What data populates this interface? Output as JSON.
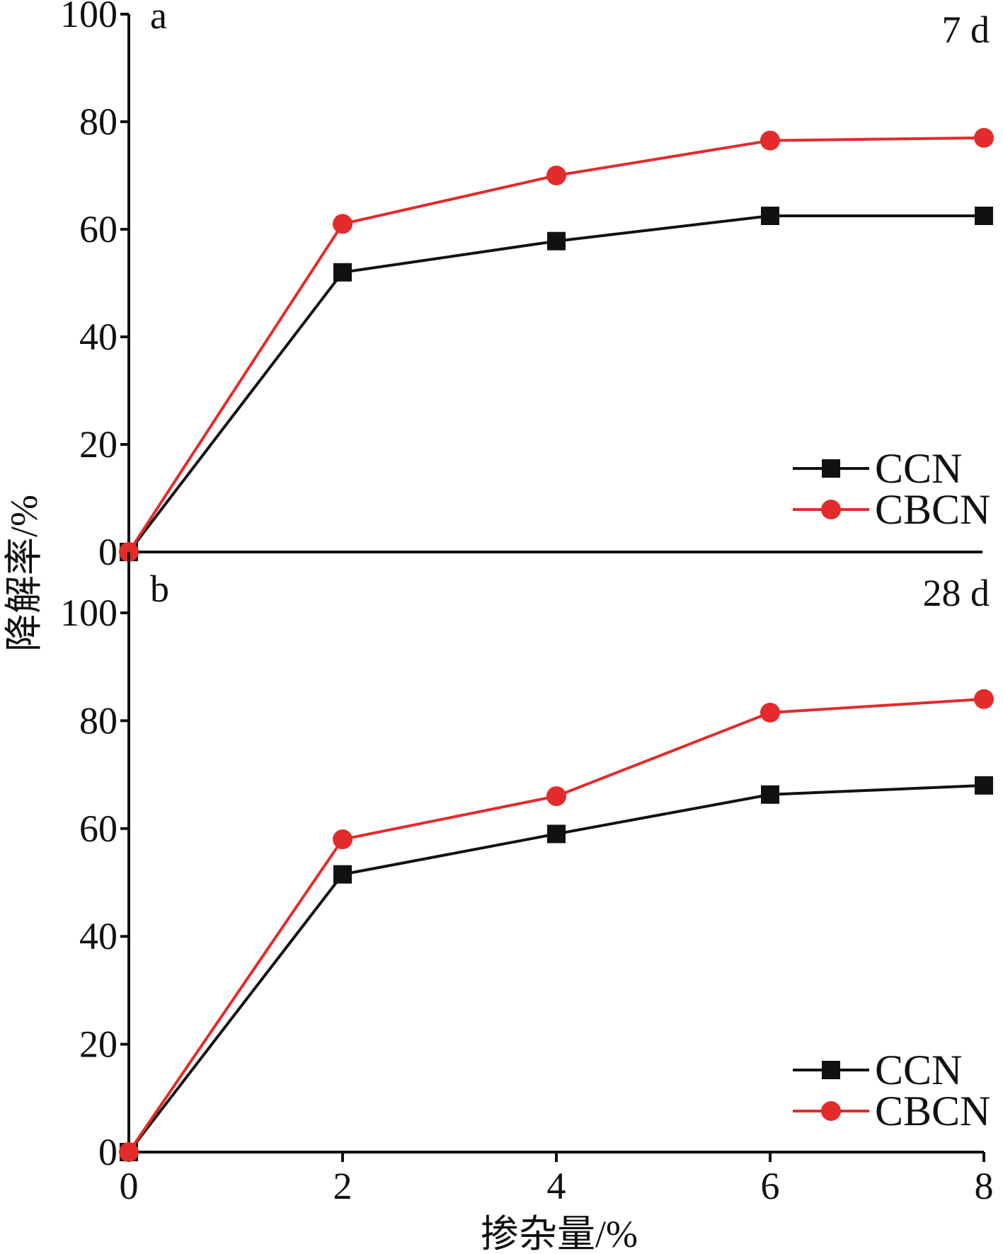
{
  "figure": {
    "ylabel": "降解率/%",
    "xlabel": "掺杂量/%"
  },
  "chart_data": [
    {
      "type": "line",
      "panel_label": "a",
      "period_label": "7 d",
      "x": [
        0,
        2,
        4,
        6,
        8
      ],
      "x_ticks": [
        "0",
        "2",
        "4",
        "6",
        "8"
      ],
      "y_ticks": [
        "0",
        "20",
        "40",
        "60",
        "80",
        "100"
      ],
      "xlim": [
        0,
        8
      ],
      "ylim": [
        0,
        100
      ],
      "grid": false,
      "legend_position": "bottom-right",
      "series": [
        {
          "name": "CCN",
          "marker": "square",
          "color": "#111111",
          "values": [
            0,
            52,
            57.8,
            62.5,
            62.5
          ]
        },
        {
          "name": "CBCN",
          "marker": "circle",
          "color": "#e32b2b",
          "values": [
            0,
            61,
            70,
            76.5,
            77
          ]
        }
      ]
    },
    {
      "type": "line",
      "panel_label": "b",
      "period_label": "28 d",
      "x": [
        0,
        2,
        4,
        6,
        8
      ],
      "x_ticks": [
        "0",
        "2",
        "4",
        "6",
        "8"
      ],
      "y_ticks": [
        "0",
        "20",
        "40",
        "60",
        "80",
        "100"
      ],
      "xlim": [
        0,
        8
      ],
      "ylim": [
        0,
        100
      ],
      "grid": false,
      "legend_position": "bottom-right",
      "series": [
        {
          "name": "CCN",
          "marker": "square",
          "color": "#111111",
          "values": [
            0,
            51.5,
            59,
            66.3,
            68
          ]
        },
        {
          "name": "CBCN",
          "marker": "circle",
          "color": "#e32b2b",
          "values": [
            0,
            58,
            66,
            81.5,
            84
          ]
        }
      ]
    }
  ]
}
